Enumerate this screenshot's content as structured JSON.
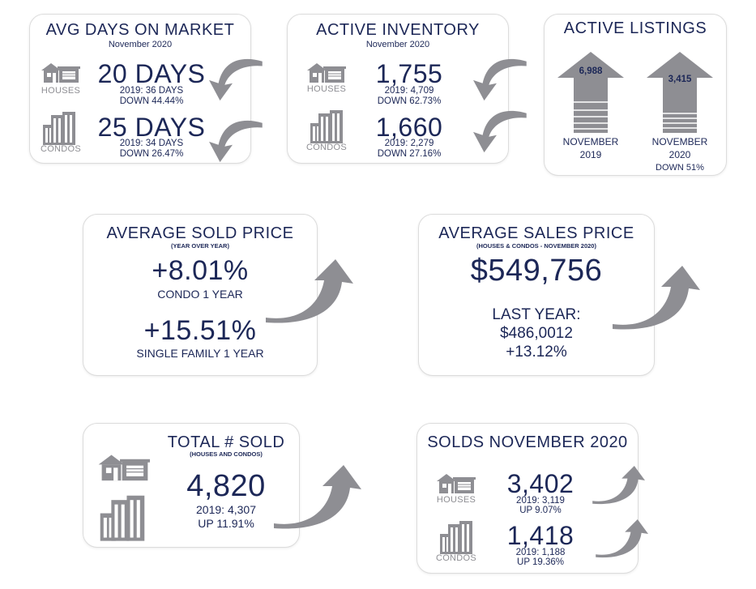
{
  "avg_days": {
    "title": "AVG DAYS ON MARKET",
    "subtitle": "November 2020",
    "houses": {
      "label": "HOUSES",
      "value": "20 DAYS",
      "prev": "2019: 36 DAYS",
      "change": "DOWN 44.44%"
    },
    "condos": {
      "label": "CONDOS",
      "value": "25 DAYS",
      "prev": "2019: 34 DAYS",
      "change": "DOWN 26.47%"
    }
  },
  "active_inventory": {
    "title": "ACTIVE INVENTORY",
    "subtitle": "November 2020",
    "houses": {
      "label": "HOUSES",
      "value": "1,755",
      "prev": "2019: 4,709",
      "change": "DOWN 62.73%"
    },
    "condos": {
      "label": "CONDOS",
      "value": "1,660",
      "prev": "2019: 2,279",
      "change": "DOWN 27.16%"
    }
  },
  "active_listings": {
    "title": "ACTIVE LISTINGS",
    "left": {
      "value": "6,988",
      "label1": "NOVEMBER",
      "label2": "2019"
    },
    "right": {
      "value": "3,415",
      "label1": "NOVEMBER",
      "label2": "2020",
      "change": "DOWN 51%"
    }
  },
  "avg_sold_price": {
    "title": "AVERAGE SOLD PRICE",
    "subtitle": "(YEAR OVER YEAR)",
    "condo": {
      "value": "+8.01%",
      "label": "CONDO 1 YEAR"
    },
    "single": {
      "value": "+15.51%",
      "label": "SINGLE FAMILY 1 YEAR"
    }
  },
  "avg_sales_price": {
    "title": "AVERAGE SALES PRICE",
    "subtitle": "(HOUSES & CONDOS - NOVEMBER 2020)",
    "value": "$549,756",
    "last_year_label": "LAST YEAR:",
    "last_year_value": "$486,0012",
    "change": "+13.12%"
  },
  "total_sold": {
    "title": "TOTAL # SOLD",
    "subtitle": "(HOUSES AND CONDOS)",
    "value": "4,820",
    "prev": "2019: 4,307",
    "change": "UP 11.91%"
  },
  "solds_nov": {
    "title": "SOLDS NOVEMBER 2020",
    "houses": {
      "label": "HOUSES",
      "value": "3,402",
      "prev": "2019: 3,119",
      "change": "UP 9.07%"
    },
    "condos": {
      "label": "CONDOS",
      "value": "1,418",
      "prev": "2019: 1,188",
      "change": "UP 19.36%"
    }
  },
  "colors": {
    "navy": "#1c2757",
    "gray": "#8e8e93",
    "border": "#dcdcdc"
  },
  "icons": [
    "house-icon",
    "condo-building-icon",
    "curved-arrow-down-icon",
    "curved-arrow-up-icon",
    "up-arrow-icon"
  ]
}
